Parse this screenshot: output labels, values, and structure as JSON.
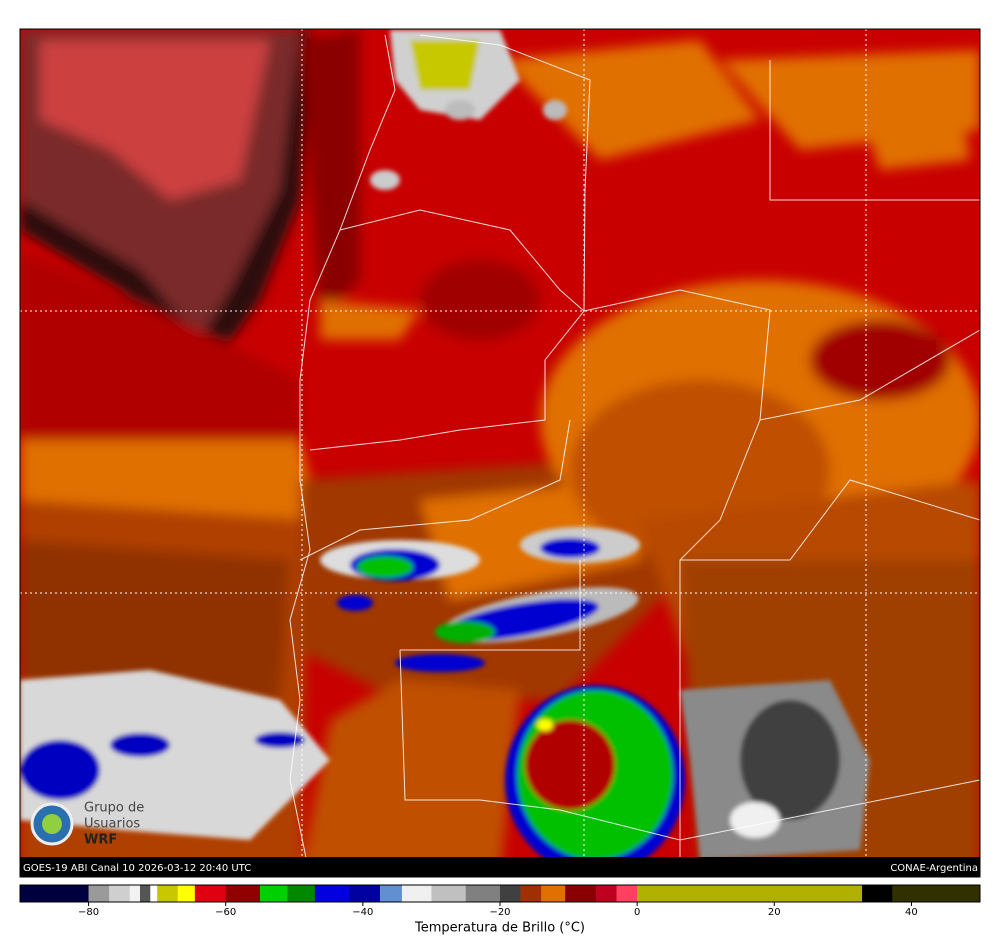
{
  "map": {
    "caption_left": "GOES-19 ABI Canal 10 2026-03-12 20:40 UTC",
    "caption_right": "CONAE-Argentina",
    "logo": [
      "Grupo de",
      "Usuarios",
      "WRF"
    ]
  },
  "chart_data": {
    "type": "colorbar",
    "xlabel": "Temperatura de Brillo (°C)",
    "xlim": [
      -90,
      50
    ],
    "xticks": [
      {
        "value": -80,
        "label": "−80"
      },
      {
        "value": -60,
        "label": "−60"
      },
      {
        "value": -40,
        "label": "−40"
      },
      {
        "value": -20,
        "label": "−20"
      },
      0,
      20,
      40
    ],
    "bins": [
      -90,
      -80,
      -77,
      -74,
      -72.5,
      -71,
      -70,
      -67,
      -64.5,
      -60,
      -55,
      -51,
      -47,
      -42,
      -37.5,
      -34.3,
      -30,
      -25,
      -20,
      -17,
      -14,
      -10.5,
      -6,
      -3,
      0,
      32.8,
      37.2,
      50
    ],
    "colors": [
      "#000040",
      "#9a9a9a",
      "#cfcfcf",
      "#f2f2f2",
      "#555555",
      "#ffffff",
      "#c8c800",
      "#ffff00",
      "#e00010",
      "#900000",
      "#00d000",
      "#008800",
      "#0000e0",
      "#0000a0",
      "#6090d0",
      "#f0f0f0",
      "#c0c0c0",
      "#808080",
      "#404040",
      "#a03000",
      "#e07000",
      "#8a0000",
      "#c00020",
      "#ff4060",
      "#b0b000",
      "#000000",
      "#303000"
    ]
  }
}
